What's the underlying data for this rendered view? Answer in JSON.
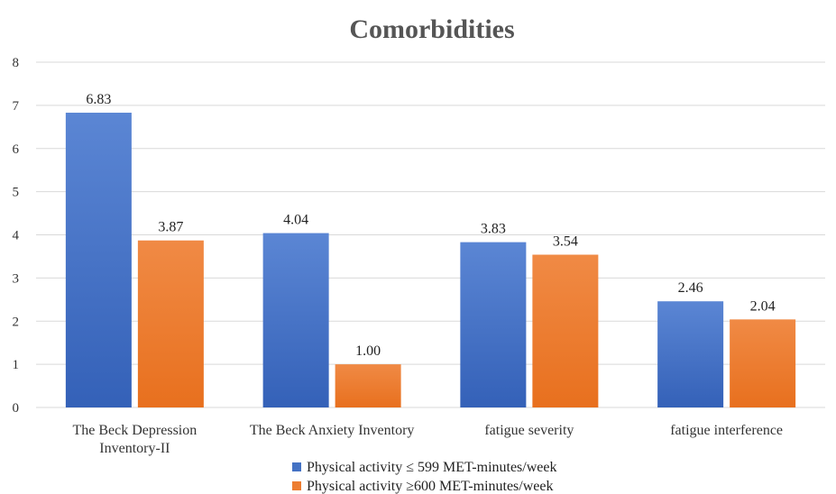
{
  "chart_data": {
    "type": "bar",
    "title": "Comorbidities",
    "categories": [
      [
        "The Beck Depression",
        "Inventory-II"
      ],
      [
        "The Beck Anxiety Inventory"
      ],
      [
        "fatigue severity"
      ],
      [
        "fatigue interference"
      ]
    ],
    "series": [
      {
        "name": "Physical activity ≤ 599 MET-minutes/week",
        "color": "#4472C4",
        "values": [
          6.83,
          4.04,
          3.83,
          2.46
        ],
        "labels": [
          "6.83",
          "4.04",
          "3.83",
          "2.46"
        ]
      },
      {
        "name": "Physical activity ≥600 MET-minutes/week",
        "color": "#ED7D31",
        "values": [
          3.87,
          1.0,
          3.54,
          2.04
        ],
        "labels": [
          "3.87",
          "1.00",
          "3.54",
          "2.04"
        ]
      }
    ],
    "ylim": [
      0,
      8
    ],
    "yticks": [
      "0",
      "1",
      "2",
      "3",
      "4",
      "5",
      "6",
      "7",
      "8"
    ],
    "grid": true,
    "legend": "bottom"
  }
}
